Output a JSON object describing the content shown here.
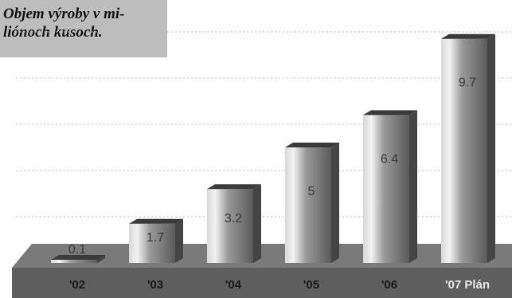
{
  "chart_data": {
    "type": "bar",
    "title_lines": [
      "Objem výroby v mi-",
      "liónoch kusoch."
    ],
    "categories": [
      "'02",
      "'03",
      "'04",
      "'05",
      "'06",
      "'07 Plán"
    ],
    "values": [
      0.1,
      1.7,
      3.2,
      5,
      6.4,
      9.7
    ],
    "value_labels": [
      "0.1",
      "1.7",
      "3.2",
      "5",
      "6.4",
      "9.7"
    ],
    "ylim": [
      0,
      10
    ],
    "grid": true,
    "legend": "none",
    "colors": {
      "bar_face_light": "#d8d8d8",
      "bar_face_dark": "#5a5a5a",
      "bar_top": "#3a3a3a",
      "floor": "#7a7a7a",
      "axis_band": "#5e5e5e",
      "category_text": "#1a1a1a",
      "highlight_category_text": "#e6e6e6",
      "gridline": "#bfbfbf"
    },
    "highlight_category_index": 5
  }
}
